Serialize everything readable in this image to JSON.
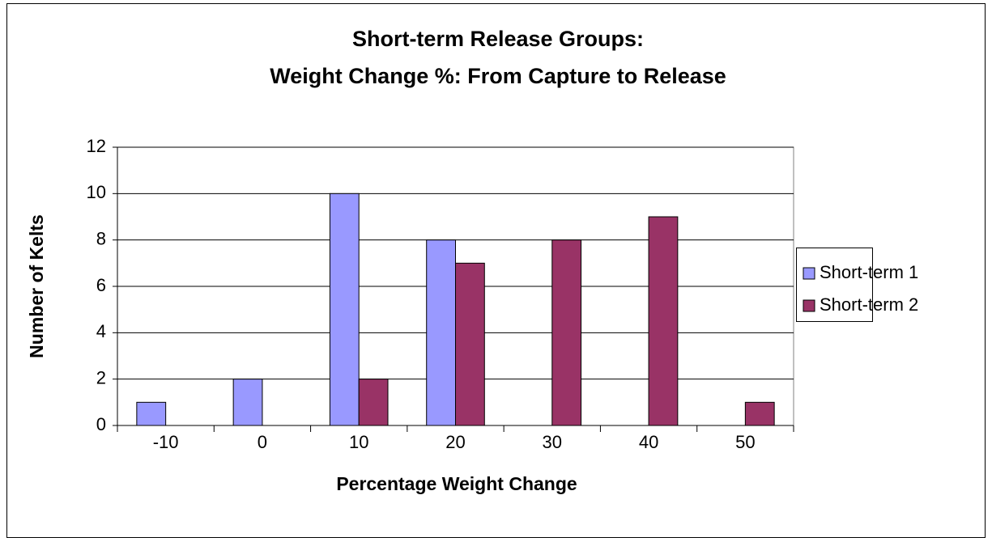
{
  "chart_data": {
    "type": "bar",
    "title": [
      "Short-term Release Groups:",
      "Weight Change %: From Capture to Release"
    ],
    "x_label": "Percentage Weight Change",
    "y_label": "Number of Kelts",
    "categories": [
      "-10",
      "0",
      "10",
      "20",
      "30",
      "40",
      "50"
    ],
    "series": [
      {
        "name": "Short-term 1",
        "color": "#9999ff",
        "values": [
          1,
          2,
          10,
          8,
          0,
          0,
          0
        ]
      },
      {
        "name": "Short-term 2",
        "color": "#993366",
        "values": [
          0,
          0,
          2,
          7,
          8,
          9,
          1
        ]
      }
    ],
    "ylim": [
      0,
      12
    ],
    "yticks": [
      0,
      2,
      4,
      6,
      8,
      10,
      12
    ],
    "grid": true,
    "legend": "right"
  }
}
